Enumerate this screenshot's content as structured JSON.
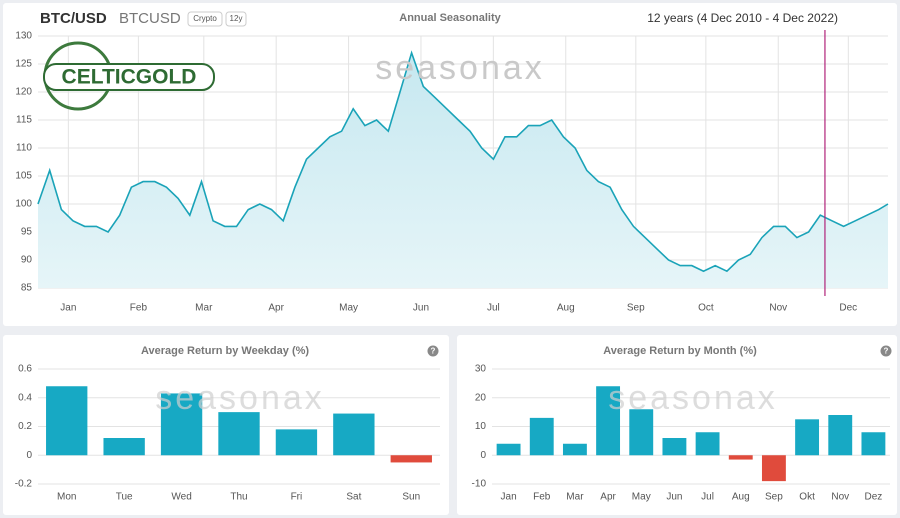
{
  "header": {
    "symbol": "BTC/USD",
    "code": "BTCUSD",
    "tag1": "Crypto",
    "tag2": "12y",
    "range": "12 years (4 Dec 2010 - 4 Dec 2022)",
    "logo": "CELTICGOLD",
    "watermark": "seasonax",
    "help": "?"
  },
  "chart_data": [
    {
      "type": "line",
      "title": "Annual Seasonality",
      "color": "#1aa3b8",
      "fill": "#d3edf3",
      "marker_color": "#b0237a",
      "marker_x": 338,
      "x": [
        1,
        6,
        11,
        16,
        21,
        26,
        31,
        36,
        41,
        46,
        51,
        56,
        61,
        66,
        71,
        76,
        81,
        86,
        91,
        96,
        101,
        106,
        111,
        116,
        121,
        126,
        131,
        136,
        141,
        146,
        151,
        156,
        161,
        166,
        171,
        176,
        181,
        186,
        191,
        196,
        201,
        206,
        211,
        216,
        221,
        226,
        231,
        236,
        241,
        246,
        251,
        256,
        261,
        266,
        271,
        276,
        281,
        286,
        291,
        296,
        301,
        306,
        311,
        316,
        321,
        326,
        331,
        336,
        341,
        346,
        351,
        356,
        361,
        365
      ],
      "values": [
        100,
        106,
        99,
        97,
        96,
        96,
        95,
        98,
        103,
        104,
        104,
        103,
        101,
        98,
        104,
        97,
        96,
        96,
        99,
        100,
        99,
        97,
        103,
        108,
        110,
        112,
        113,
        117,
        114,
        115,
        113,
        120,
        127,
        121,
        119,
        117,
        115,
        113,
        110,
        108,
        112,
        112,
        114,
        114,
        115,
        112,
        110,
        106,
        104,
        103,
        99,
        96,
        94,
        92,
        90,
        89,
        89,
        88,
        89,
        88,
        90,
        91,
        94,
        96,
        96,
        94,
        95,
        98,
        97,
        96,
        97,
        98,
        99,
        100
      ],
      "xlim": [
        1,
        365
      ],
      "xticks": [
        {
          "value": 14,
          "label": "Jan"
        },
        {
          "value": 44,
          "label": "Feb"
        },
        {
          "value": 72,
          "label": "Mar"
        },
        {
          "value": 103,
          "label": "Apr"
        },
        {
          "value": 134,
          "label": "May"
        },
        {
          "value": 165,
          "label": "Jun"
        },
        {
          "value": 196,
          "label": "Jul"
        },
        {
          "value": 227,
          "label": "Aug"
        },
        {
          "value": 257,
          "label": "Sep"
        },
        {
          "value": 287,
          "label": "Oct"
        },
        {
          "value": 318,
          "label": "Nov"
        },
        {
          "value": 348,
          "label": "Dec"
        }
      ],
      "ylim": [
        85,
        130
      ],
      "yticks": [
        85,
        90,
        95,
        100,
        105,
        110,
        115,
        120,
        125,
        130
      ],
      "grid": true
    },
    {
      "type": "bar",
      "title": "Average Return by Weekday (%)",
      "categories": [
        "Mon",
        "Tue",
        "Wed",
        "Thu",
        "Fri",
        "Sat",
        "Sun"
      ],
      "values": [
        0.48,
        0.12,
        0.43,
        0.3,
        0.18,
        0.29,
        -0.05
      ],
      "colors": [
        "#17a9c4",
        "#17a9c4",
        "#17a9c4",
        "#17a9c4",
        "#17a9c4",
        "#17a9c4",
        "#e04b3c"
      ],
      "ylim": [
        -0.2,
        0.6
      ],
      "yticks": [
        -0.2,
        0,
        0.2,
        0.4,
        0.6
      ],
      "grid": true
    },
    {
      "type": "bar",
      "title": "Average Return by Month (%)",
      "categories": [
        "Jan",
        "Feb",
        "Mar",
        "Apr",
        "May",
        "Jun",
        "Jul",
        "Aug",
        "Sep",
        "Okt",
        "Nov",
        "Dez"
      ],
      "values": [
        4,
        13,
        4,
        24,
        16,
        6,
        8,
        -1.5,
        -9,
        12.5,
        14,
        8
      ],
      "colors": [
        "#17a9c4",
        "#17a9c4",
        "#17a9c4",
        "#17a9c4",
        "#17a9c4",
        "#17a9c4",
        "#17a9c4",
        "#e04b3c",
        "#e04b3c",
        "#17a9c4",
        "#17a9c4",
        "#17a9c4"
      ],
      "ylim": [
        -10,
        30
      ],
      "yticks": [
        -10,
        0,
        10,
        20,
        30
      ],
      "grid": true
    }
  ]
}
